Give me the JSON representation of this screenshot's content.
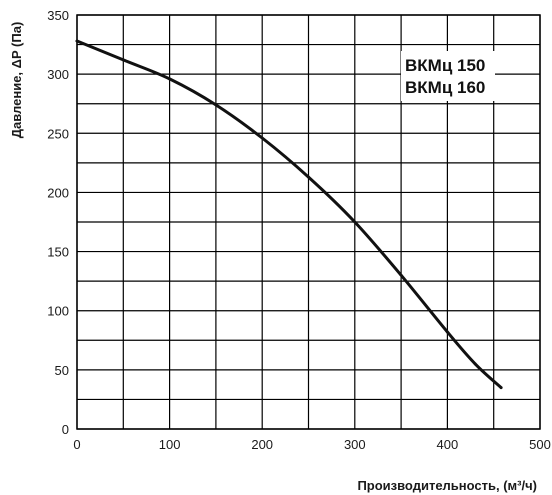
{
  "chart_data": {
    "type": "line",
    "title": "",
    "xlabel": "Производительность, (м³/ч)",
    "ylabel": "Давление, ΔP (Па)",
    "xlim": [
      0,
      500
    ],
    "ylim": [
      0,
      350
    ],
    "xticks": [
      0,
      50,
      100,
      150,
      200,
      250,
      300,
      350,
      400,
      450,
      500
    ],
    "yticks": [
      0,
      25,
      50,
      75,
      100,
      125,
      150,
      175,
      200,
      225,
      250,
      275,
      300,
      325,
      350
    ],
    "xtick_labels": [
      "0",
      "100",
      "200",
      "300",
      "400",
      "500"
    ],
    "xtick_label_values": [
      0,
      100,
      200,
      300,
      400,
      500
    ],
    "ytick_labels": [
      "0",
      "50",
      "100",
      "150",
      "200",
      "250",
      "300",
      "350"
    ],
    "ytick_label_values": [
      0,
      50,
      100,
      150,
      200,
      250,
      300,
      350
    ],
    "grid": true,
    "legend": [
      "ВКМц 150",
      "ВКМц 160"
    ],
    "series": [
      {
        "x": [
          0,
          50,
          100,
          150,
          200,
          250,
          300,
          350,
          400,
          430,
          458
        ],
        "y": [
          328,
          312,
          296,
          274,
          246,
          213,
          175,
          130,
          82,
          55,
          35
        ],
        "color": "#111111"
      }
    ]
  }
}
